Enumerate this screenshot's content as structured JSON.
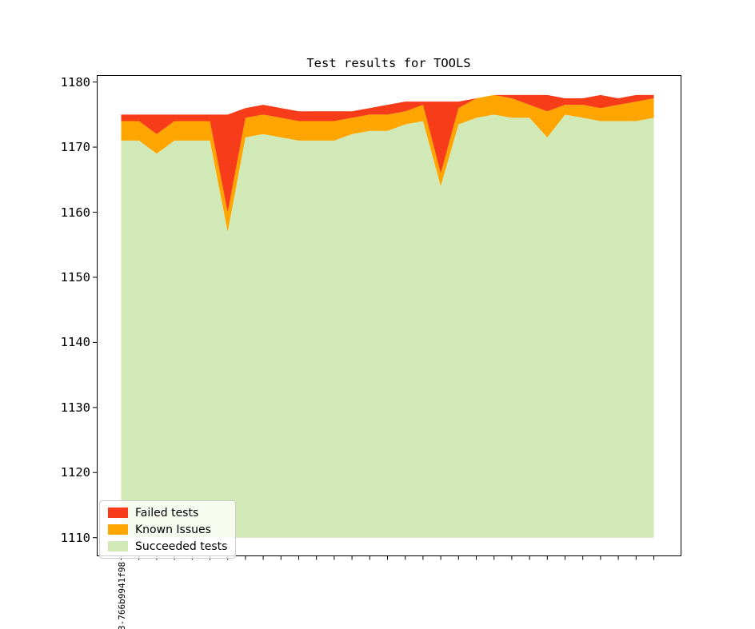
{
  "title": "Test results for TOOLS",
  "chart_data": {
    "type": "area",
    "stacked": true,
    "title": "Test results for TOOLS",
    "xlabel": "",
    "ylabel": "",
    "grid": false,
    "legend_position": "lower left",
    "n_points": 31,
    "baseline": 1110,
    "ylim": [
      1107.2,
      1181.0
    ],
    "yticks": [
      1110,
      1120,
      1130,
      1140,
      1150,
      1160,
      1170,
      1180
    ],
    "x_tick_labels": [
      "3-766b9941f98",
      "",
      "",
      "",
      "",
      "",
      "",
      "",
      "",
      "",
      "",
      "",
      "",
      "",
      "",
      "",
      "",
      "",
      "",
      "",
      "",
      "",
      "",
      "",
      "",
      "",
      "",
      "",
      "",
      "",
      ""
    ],
    "series": [
      {
        "name": "Succeeded tests",
        "color": "#d0e9b6",
        "cumulative_top": [
          1171,
          1171,
          1169,
          1171,
          1171,
          1171,
          1157,
          1171.5,
          1172,
          1171.5,
          1171,
          1171,
          1171,
          1172,
          1172.5,
          1172.5,
          1173.5,
          1174,
          1164,
          1173.5,
          1174.5,
          1175,
          1174.5,
          1174.5,
          1171.5,
          1175,
          1174.5,
          1174,
          1174,
          1174,
          1174.5
        ]
      },
      {
        "name": "Known Issues",
        "color": "#ffa500",
        "cumulative_top": [
          1174,
          1174,
          1172,
          1174,
          1174,
          1174,
          1160,
          1174.5,
          1175,
          1174.5,
          1174,
          1174,
          1174,
          1174.5,
          1175,
          1175,
          1175.5,
          1176.5,
          1166,
          1176,
          1177.5,
          1178,
          1177.5,
          1176.5,
          1175.5,
          1176.5,
          1176.5,
          1176,
          1176.5,
          1177,
          1177.5
        ]
      },
      {
        "name": "Failed tests",
        "color": "#f63c18",
        "cumulative_top": [
          1175,
          1175,
          1175,
          1175,
          1175,
          1175,
          1175,
          1176,
          1176.5,
          1176,
          1175.5,
          1175.5,
          1175.5,
          1175.5,
          1176,
          1176.5,
          1177,
          1177,
          1177,
          1177,
          1177.5,
          1178,
          1178,
          1178,
          1178,
          1177.5,
          1177.5,
          1178,
          1177.5,
          1178,
          1178
        ]
      }
    ]
  },
  "legend": {
    "items": [
      {
        "label": "Failed tests",
        "color": "#f63c18"
      },
      {
        "label": "Known Issues",
        "color": "#ffa500"
      },
      {
        "label": "Succeeded tests",
        "color": "#d0e9b6"
      }
    ]
  }
}
